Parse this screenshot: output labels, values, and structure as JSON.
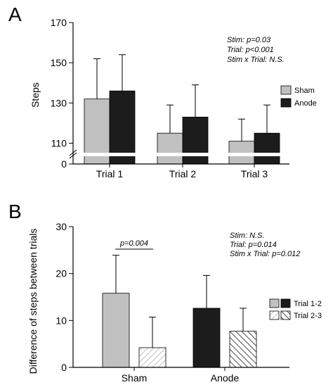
{
  "chart_data": [
    {
      "panel": "A",
      "type": "bar",
      "ylabel": "Steps",
      "ylim": [
        0,
        170
      ],
      "axis_break": true,
      "yticks": [
        "0",
        "110",
        "130",
        "150",
        "170"
      ],
      "categories": [
        "Trial 1",
        "Trial 2",
        "Trial 3"
      ],
      "series": [
        {
          "name": "Sham",
          "values": [
            132,
            115,
            111
          ],
          "errors": [
            20,
            14,
            11
          ],
          "color": "#c0c0c0"
        },
        {
          "name": "Anode",
          "values": [
            136,
            123,
            115
          ],
          "errors": [
            18,
            16,
            14
          ],
          "color": "#1c1c1c"
        }
      ],
      "stats": [
        "Stim: p=0.03",
        "Trial: p<0.001",
        "Stim x Trial: N.S."
      ],
      "legend_position": "right"
    },
    {
      "panel": "B",
      "type": "bar",
      "ylabel": "Difference of steps between trials",
      "ylim": [
        0,
        30
      ],
      "yticks": [
        "0",
        "10",
        "20",
        "30"
      ],
      "categories": [
        "Sham",
        "Anode"
      ],
      "series": [
        {
          "name": "Trial 1-2",
          "values": [
            15.8,
            12.6
          ],
          "errors": [
            8.1,
            7.0
          ]
        },
        {
          "name": "Trial 2-3",
          "values": [
            4.2,
            7.7
          ],
          "errors": [
            6.5,
            4.9
          ]
        }
      ],
      "bar_colors": {
        "Sham": {
          "Trial 1-2": "#c0c0c0",
          "Trial 2-3": "#ffffff"
        },
        "Anode": {
          "Trial 1-2": "#1c1c1c",
          "Trial 2-3": "#ffffff"
        }
      },
      "annotation": "p=0.004",
      "stats": [
        "Stim: N.S.",
        "Trial: p=0.014",
        "Stim x Trial: p=0.012"
      ],
      "legend_position": "right"
    }
  ]
}
